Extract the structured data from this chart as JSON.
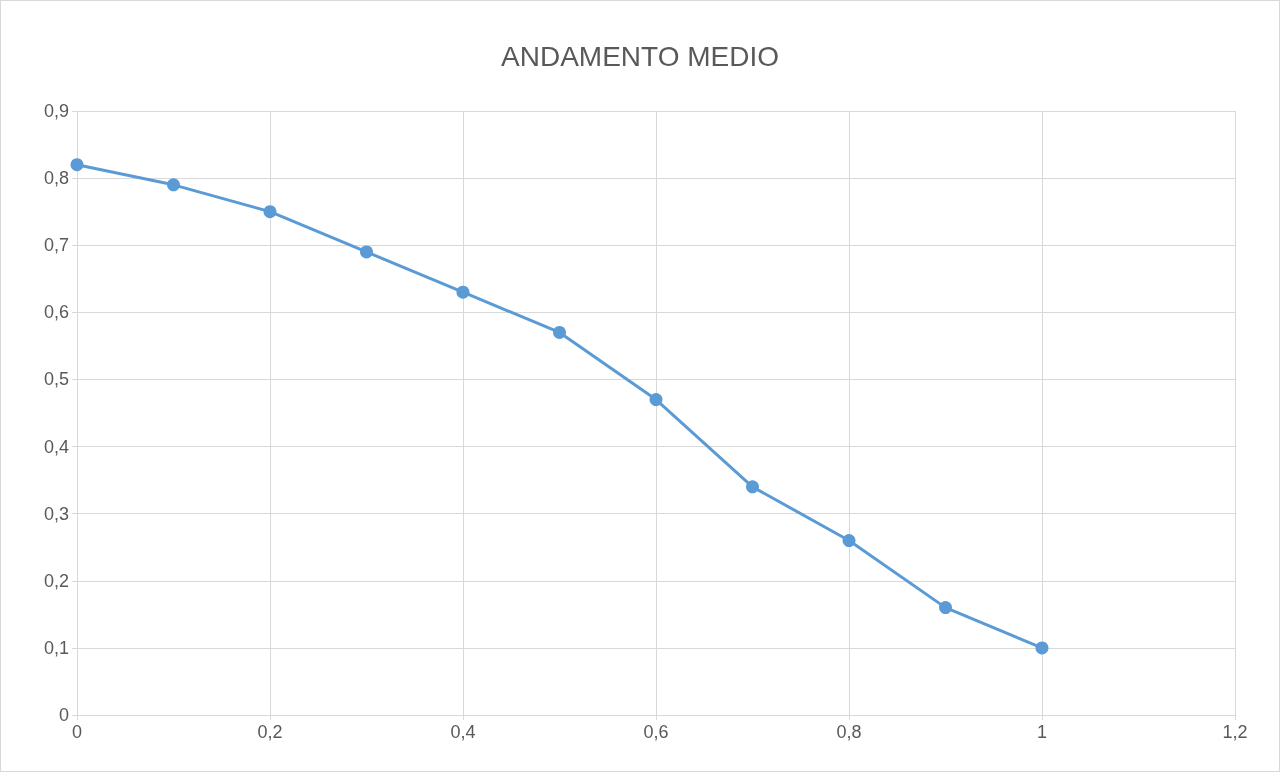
{
  "chart_data": {
    "type": "line",
    "title": "ANDAMENTO MEDIO",
    "x": [
      0,
      0.1,
      0.2,
      0.3,
      0.4,
      0.5,
      0.6,
      0.7,
      0.8,
      0.9,
      1
    ],
    "series": [
      {
        "color": "#5b9bd5",
        "values": [
          0.82,
          0.79,
          0.75,
          0.69,
          0.63,
          0.57,
          0.47,
          0.34,
          0.26,
          0.16,
          0.1
        ]
      }
    ],
    "xlim": [
      0,
      1.2
    ],
    "xticks": [
      0,
      {
        "value": 0.2,
        "label": "0,2"
      },
      {
        "value": 0.4,
        "label": "0,4"
      },
      {
        "value": 0.6,
        "label": "0,6"
      },
      {
        "value": 0.8,
        "label": "0,8"
      },
      1,
      {
        "value": 1.2,
        "label": "1,2"
      }
    ],
    "ylim": [
      0,
      0.9
    ],
    "yticks": [
      0,
      {
        "value": 0.1,
        "label": "0,1"
      },
      {
        "value": 0.2,
        "label": "0,2"
      },
      {
        "value": 0.3,
        "label": "0,3"
      },
      {
        "value": 0.4,
        "label": "0,4"
      },
      {
        "value": 0.5,
        "label": "0,5"
      },
      {
        "value": 0.6,
        "label": "0,6"
      },
      {
        "value": 0.7,
        "label": "0,7"
      },
      {
        "value": 0.8,
        "label": "0,8"
      },
      {
        "value": 0.9,
        "label": "0,9"
      }
    ],
    "grid": true,
    "marker": "circle",
    "line_style": "solid"
  }
}
